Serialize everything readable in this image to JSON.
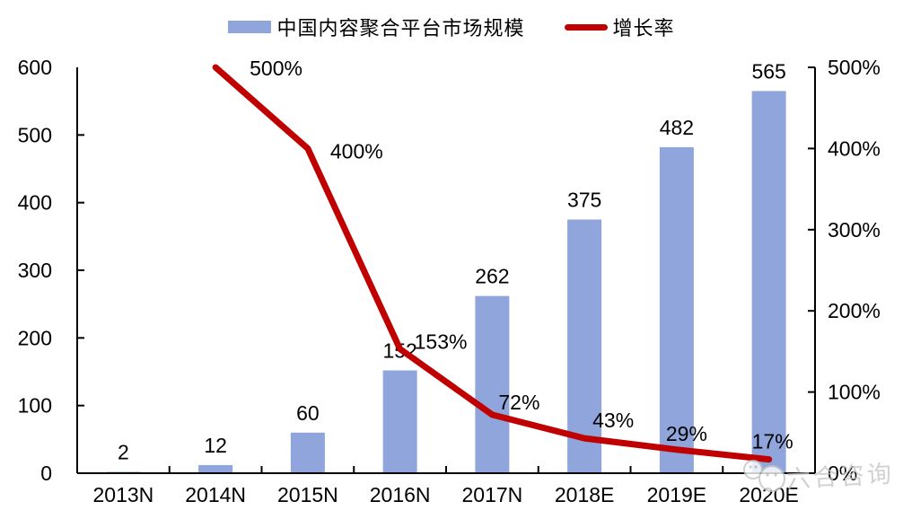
{
  "legend": [
    {
      "label": "中国内容聚合平台市场规模",
      "swatch": "bar"
    },
    {
      "label": "增长率",
      "swatch": "line"
    }
  ],
  "chart_data": {
    "type": "combo-bar-line",
    "categories": [
      "2013N",
      "2014N",
      "2015N",
      "2016N",
      "2017N",
      "2018E",
      "2019E",
      "2020E"
    ],
    "series": [
      {
        "name": "中国内容聚合平台市场规模",
        "type": "bar",
        "axis": "left",
        "color": "#8FA5DB",
        "values": [
          2,
          12,
          60,
          152,
          262,
          375,
          482,
          565
        ],
        "labels": [
          "2",
          "12",
          "60",
          "152",
          "262",
          "375",
          "482",
          "565"
        ]
      },
      {
        "name": "增长率",
        "type": "line",
        "axis": "right",
        "color": "#C00000",
        "values": [
          null,
          500,
          400,
          153,
          72,
          43,
          29,
          17
        ],
        "labels": [
          null,
          "500%",
          "400%",
          "153%",
          "72%",
          "43%",
          "29%",
          "17%"
        ]
      }
    ],
    "left_axis": {
      "min": 0,
      "max": 600,
      "step": 100,
      "ticks": [
        "0",
        "100",
        "200",
        "300",
        "400",
        "500",
        "600"
      ]
    },
    "right_axis": {
      "min": 0,
      "max": 500,
      "step": 100,
      "ticks": [
        "0%",
        "100%",
        "200%",
        "300%",
        "400%",
        "500%"
      ]
    },
    "grid": false,
    "legend_position": "top",
    "axis_color": "#000000"
  },
  "watermark": {
    "text": "六合咨询"
  }
}
